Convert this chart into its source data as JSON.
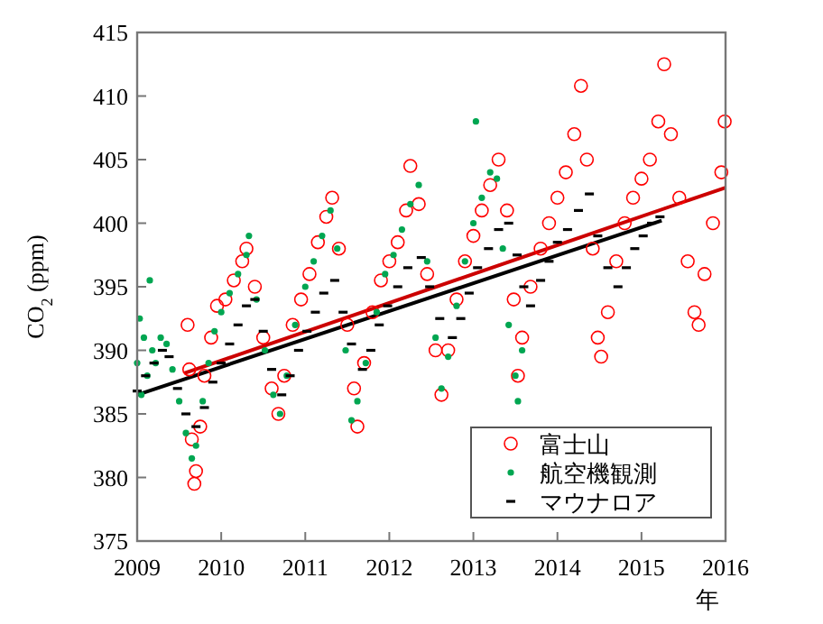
{
  "chart_data": {
    "type": "scatter",
    "xlabel": "年",
    "ylabel": "CO$_{2}$ (ppm)",
    "xlim": [
      2009,
      2016
    ],
    "xticks": [
      2009,
      2010,
      2011,
      2012,
      2013,
      2014,
      2015,
      2016
    ],
    "ylim": [
      375,
      415
    ],
    "yticks": [
      375,
      380,
      385,
      390,
      395,
      400,
      405,
      410,
      415
    ],
    "grid": false,
    "legend": "bottom right",
    "series": [
      {
        "name": "富士山",
        "color": "#ff0000",
        "marker": "circle",
        "x": [
          2009.6,
          2009.62,
          2009.65,
          2009.68,
          2009.7,
          2009.75,
          2009.8,
          2009.88,
          2009.95,
          2010.05,
          2010.15,
          2010.25,
          2010.3,
          2010.4,
          2010.5,
          2010.6,
          2010.68,
          2010.75,
          2010.85,
          2010.95,
          2011.05,
          2011.15,
          2011.25,
          2011.32,
          2011.4,
          2011.5,
          2011.58,
          2011.62,
          2011.7,
          2011.8,
          2011.9,
          2012.0,
          2012.1,
          2012.2,
          2012.25,
          2012.35,
          2012.45,
          2012.55,
          2012.62,
          2012.7,
          2012.8,
          2012.9,
          2013.0,
          2013.1,
          2013.2,
          2013.3,
          2013.4,
          2013.48,
          2013.53,
          2013.58,
          2013.68,
          2013.8,
          2013.9,
          2014.0,
          2014.1,
          2014.2,
          2014.28,
          2014.35,
          2014.42,
          2014.48,
          2014.52,
          2014.6,
          2014.7,
          2014.8,
          2014.9,
          2015.0,
          2015.1,
          2015.2,
          2015.27,
          2015.35,
          2015.45,
          2015.55,
          2015.63,
          2015.68,
          2015.75,
          2015.85,
          2015.95,
          2015.99
        ],
        "values": [
          392.0,
          388.5,
          383.0,
          379.5,
          380.5,
          384.0,
          388.0,
          391.0,
          393.5,
          394.0,
          395.5,
          397.0,
          398.0,
          395.0,
          391.0,
          387.0,
          385.0,
          388.0,
          392.0,
          394.0,
          396.0,
          398.5,
          400.5,
          402.0,
          398.0,
          392.0,
          387.0,
          384.0,
          389.0,
          393.0,
          395.5,
          397.0,
          398.5,
          401.0,
          404.5,
          401.5,
          396.0,
          390.0,
          386.5,
          390.0,
          394.0,
          397.0,
          399.0,
          401.0,
          403.0,
          405.0,
          401.0,
          394.0,
          388.0,
          391.0,
          395.0,
          398.0,
          400.0,
          402.0,
          404.0,
          407.0,
          410.8,
          405.0,
          398.0,
          391.0,
          389.5,
          393.0,
          397.0,
          400.0,
          402.0,
          403.5,
          405.0,
          408.0,
          412.5,
          407.0,
          402.0,
          397.0,
          393.0,
          392.0,
          396.0,
          400.0,
          404.0,
          408.0
        ]
      },
      {
        "name": "航空機観測",
        "color": "#00a651",
        "marker": "dot",
        "x": [
          2009.0,
          2009.03,
          2009.05,
          2009.08,
          2009.12,
          2009.15,
          2009.18,
          2009.22,
          2009.28,
          2009.35,
          2009.42,
          2009.5,
          2009.58,
          2009.65,
          2009.7,
          2009.78,
          2009.85,
          2009.92,
          2010.0,
          2010.1,
          2010.2,
          2010.3,
          2010.33,
          2010.42,
          2010.52,
          2010.62,
          2010.7,
          2010.78,
          2010.88,
          2011.0,
          2011.1,
          2011.2,
          2011.3,
          2011.38,
          2011.48,
          2011.55,
          2011.62,
          2011.72,
          2011.85,
          2011.95,
          2012.05,
          2012.15,
          2012.25,
          2012.35,
          2012.45,
          2012.55,
          2012.62,
          2012.7,
          2012.8,
          2012.9,
          2013.0,
          2013.03,
          2013.1,
          2013.2,
          2013.28,
          2013.35,
          2013.42,
          2013.5,
          2013.53,
          2013.58
        ],
        "values": [
          389.0,
          392.5,
          386.5,
          391.0,
          388.0,
          395.5,
          390.0,
          389.0,
          391.0,
          390.5,
          388.5,
          386.0,
          383.5,
          381.5,
          382.5,
          386.0,
          389.0,
          391.5,
          393.0,
          394.5,
          396.0,
          397.5,
          399.0,
          394.0,
          390.0,
          386.5,
          385.0,
          388.0,
          392.0,
          395.0,
          397.0,
          399.0,
          401.0,
          398.0,
          390.0,
          384.5,
          386.0,
          389.0,
          393.0,
          396.0,
          397.5,
          399.5,
          401.5,
          403.0,
          397.0,
          391.0,
          387.0,
          389.5,
          393.5,
          397.0,
          400.0,
          408.0,
          402.0,
          404.0,
          403.5,
          398.0,
          392.0,
          388.0,
          386.0,
          390.0
        ]
      },
      {
        "name": "マウナロア",
        "color": "#000000",
        "x": [
          2009.0,
          2009.1,
          2009.2,
          2009.3,
          2009.38,
          2009.48,
          2009.58,
          2009.7,
          2009.8,
          2009.9,
          2010.0,
          2010.1,
          2010.2,
          2010.3,
          2010.4,
          2010.5,
          2010.6,
          2010.72,
          2010.82,
          2010.92,
          2011.02,
          2011.12,
          2011.22,
          2011.35,
          2011.45,
          2011.55,
          2011.68,
          2011.78,
          2011.88,
          2011.98,
          2012.1,
          2012.22,
          2012.38,
          2012.48,
          2012.6,
          2012.75,
          2012.85,
          2012.95,
          2013.05,
          2013.18,
          2013.3,
          2013.42,
          2013.52,
          2013.6,
          2013.68,
          2013.8,
          2013.9,
          2014.0,
          2014.12,
          2014.25,
          2014.38,
          2014.48,
          2014.6,
          2014.72,
          2014.82,
          2014.92,
          2015.02,
          2015.12,
          2015.22
        ],
        "values": [
          386.8,
          388.0,
          389.0,
          390.0,
          389.5,
          387.0,
          385.0,
          384.0,
          385.5,
          387.5,
          389.0,
          390.5,
          392.0,
          393.5,
          394.0,
          391.5,
          388.5,
          386.5,
          388.0,
          390.0,
          391.5,
          393.0,
          394.5,
          395.5,
          393.0,
          390.5,
          388.5,
          390.0,
          392.0,
          393.5,
          395.0,
          396.5,
          397.3,
          395.0,
          392.5,
          391.0,
          392.5,
          394.5,
          396.5,
          398.0,
          399.5,
          400.0,
          397.5,
          395.0,
          393.5,
          395.5,
          397.0,
          398.5,
          399.5,
          401.0,
          402.3,
          399.0,
          396.5,
          395.0,
          396.5,
          398.0,
          399.0,
          400.0,
          400.5
        ]
      },
      {
        "type": "line",
        "color": "#cc0000",
        "x": [
          2009.56,
          2016
        ],
        "values": [
          388.2,
          402.8
        ]
      },
      {
        "type": "line",
        "color": "#000000",
        "x": [
          2009,
          2015.24
        ],
        "values": [
          386.5,
          400.2
        ]
      }
    ]
  }
}
